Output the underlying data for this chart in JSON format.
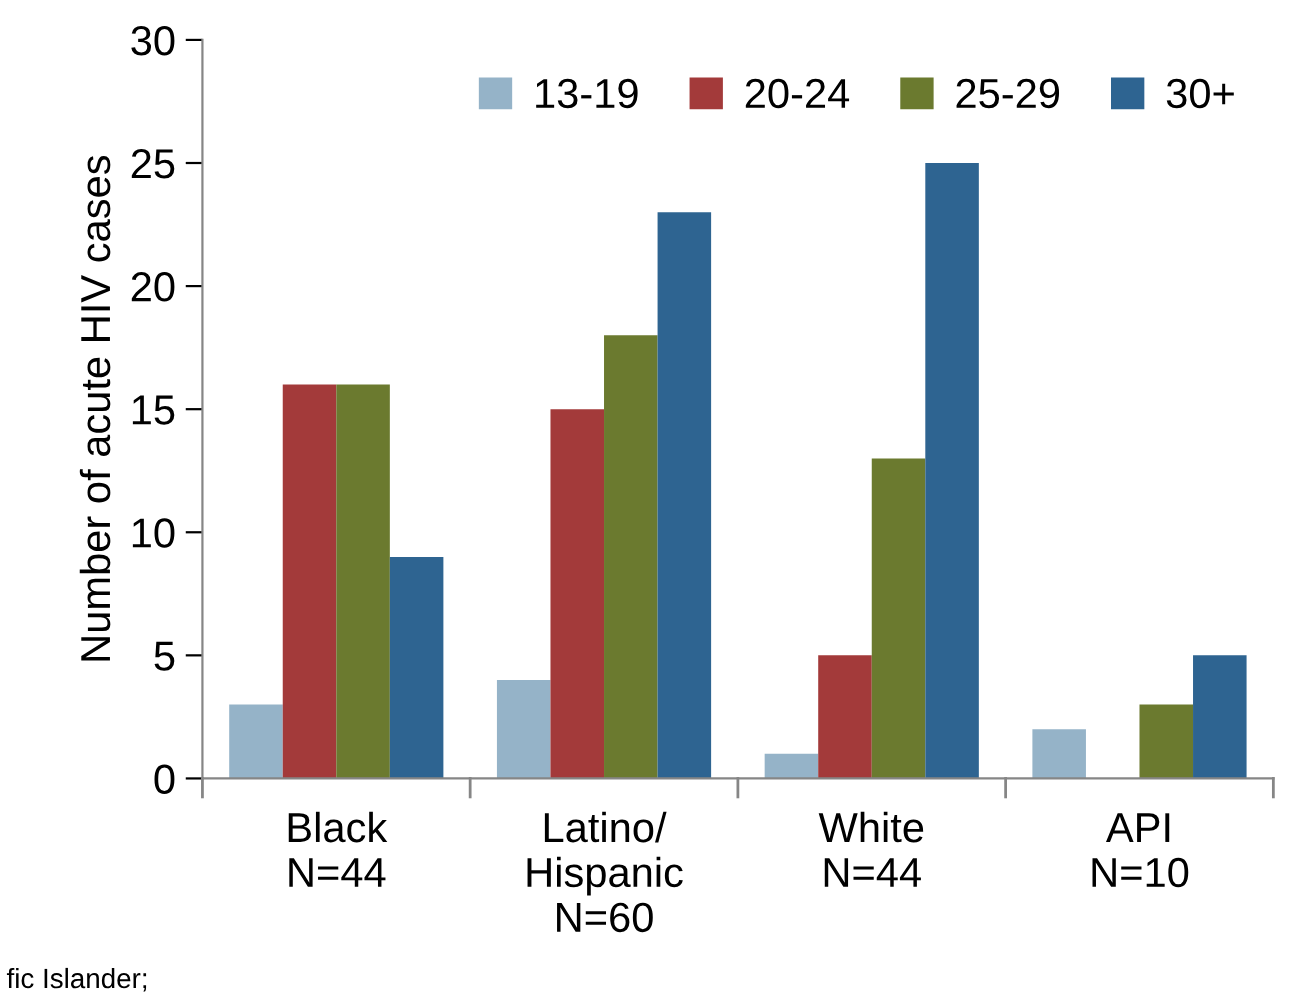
{
  "chart_data": {
    "type": "bar",
    "ylabel": "Number of acute HIV cases",
    "categories": [
      "Black\nN=44",
      "Latino/\nHispanic\nN=60",
      "White\nN=44",
      "API\nN=10"
    ],
    "series": [
      {
        "name": "13-19",
        "color": "#95b3c8",
        "values": [
          3,
          4,
          1,
          2
        ]
      },
      {
        "name": "20-24",
        "color": "#a33a3a",
        "values": [
          16,
          15,
          5,
          0
        ]
      },
      {
        "name": "25-29",
        "color": "#6b7a2f",
        "values": [
          16,
          18,
          13,
          3
        ]
      },
      {
        "name": "30+",
        "color": "#2e6491",
        "values": [
          9,
          23,
          25,
          5
        ]
      }
    ],
    "ylim": [
      0,
      30
    ],
    "yticks": [
      0,
      5,
      10,
      15,
      20,
      25,
      30
    ],
    "grid": false,
    "legend": "top right",
    "annotations": [
      "fic Islander;"
    ]
  }
}
